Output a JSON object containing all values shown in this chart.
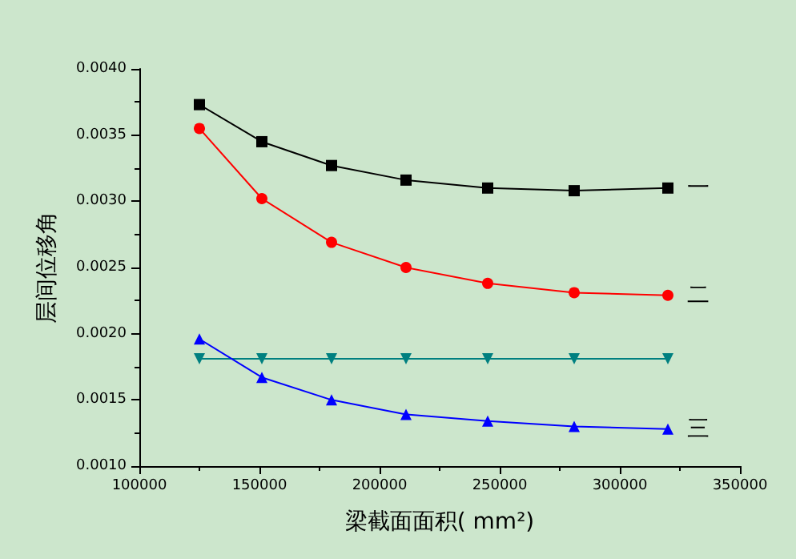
{
  "chart_data": {
    "type": "line",
    "xlabel": "梁截面面积( mm²)",
    "ylabel": "层间位移角",
    "x": [
      125000,
      151000,
      180000,
      211000,
      245000,
      281000,
      320000
    ],
    "series": [
      {
        "name": "一",
        "color": "#000000",
        "marker": "square",
        "values": [
          0.00373,
          0.00345,
          0.00327,
          0.00316,
          0.0031,
          0.00308,
          0.0031
        ]
      },
      {
        "name": "二",
        "color": "#ff0000",
        "marker": "circle",
        "values": [
          0.00355,
          0.00302,
          0.00269,
          0.0025,
          0.00238,
          0.00231,
          0.00229
        ]
      },
      {
        "color": "#008080",
        "marker": "triangle-down",
        "values": [
          0.00181,
          0.00181,
          0.00181,
          0.00181,
          0.00181,
          0.00181,
          0.00181
        ]
      },
      {
        "name": "三",
        "color": "#0000ff",
        "marker": "triangle",
        "values": [
          0.00196,
          0.00167,
          0.0015,
          0.00139,
          0.00134,
          0.0013,
          0.00128
        ]
      }
    ],
    "xlim": [
      100000,
      350000
    ],
    "xticks": [
      100000,
      150000,
      200000,
      250000,
      300000,
      350000
    ],
    "ylim": [
      0.001,
      0.004
    ],
    "yticks": [
      {
        "value": 0.001,
        "label": "0.0010"
      },
      {
        "value": 0.0015,
        "label": "0.0015"
      },
      {
        "value": 0.002,
        "label": "0.0020"
      },
      {
        "value": 0.0025,
        "label": "0.0025"
      },
      {
        "value": 0.003,
        "label": "0.0030"
      },
      {
        "value": 0.0035,
        "label": "0.0035"
      },
      {
        "value": 0.004,
        "label": "0.0040"
      }
    ],
    "grid": false,
    "legend": false
  }
}
